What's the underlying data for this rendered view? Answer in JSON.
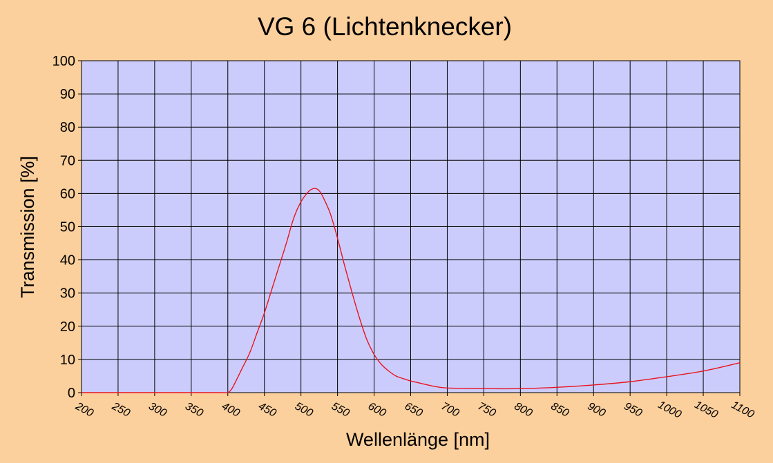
{
  "chart_data": {
    "type": "line",
    "title": "VG 6 (Lichtenknecker)",
    "xlabel": "Wellenlänge [nm]",
    "ylabel": "Transmission [%]",
    "xlim": [
      200,
      1100
    ],
    "ylim": [
      0,
      100
    ],
    "grid": true,
    "legend": "none",
    "xticks": [
      "200",
      "250",
      "300",
      "350",
      "400",
      "450",
      "500",
      "550",
      "600",
      "650",
      "700",
      "750",
      "800",
      "850",
      "900",
      "950",
      "1000",
      "1050",
      "1100"
    ],
    "yticks": [
      "0",
      "10",
      "20",
      "30",
      "40",
      "50",
      "60",
      "70",
      "80",
      "90",
      "100"
    ],
    "colors": {
      "background": "#fcd09c",
      "plot_area": "#ccccfc",
      "grid": "#000000",
      "line": "#e8141e"
    },
    "series": [
      {
        "x": [
          200,
          250,
          300,
          350,
          390,
          400,
          405,
          410,
          420,
          430,
          440,
          450,
          460,
          470,
          480,
          490,
          500,
          510,
          515,
          520,
          525,
          530,
          540,
          550,
          560,
          570,
          580,
          590,
          600,
          610,
          620,
          630,
          640,
          650,
          660,
          680,
          700,
          750,
          800,
          850,
          900,
          950,
          1000,
          1050,
          1100
        ],
        "y": [
          0,
          0,
          0,
          0,
          0,
          0,
          1,
          3,
          7.5,
          12,
          18,
          24,
          31,
          38,
          45,
          52.5,
          57.5,
          60.5,
          61.3,
          61.5,
          60.8,
          59,
          54,
          46.5,
          38,
          30,
          22.5,
          16,
          11.5,
          8.5,
          6.5,
          5,
          4.2,
          3.5,
          3.0,
          2.0,
          1.4,
          1.2,
          1.2,
          1.6,
          2.3,
          3.3,
          4.8,
          6.5,
          9
        ]
      }
    ]
  }
}
